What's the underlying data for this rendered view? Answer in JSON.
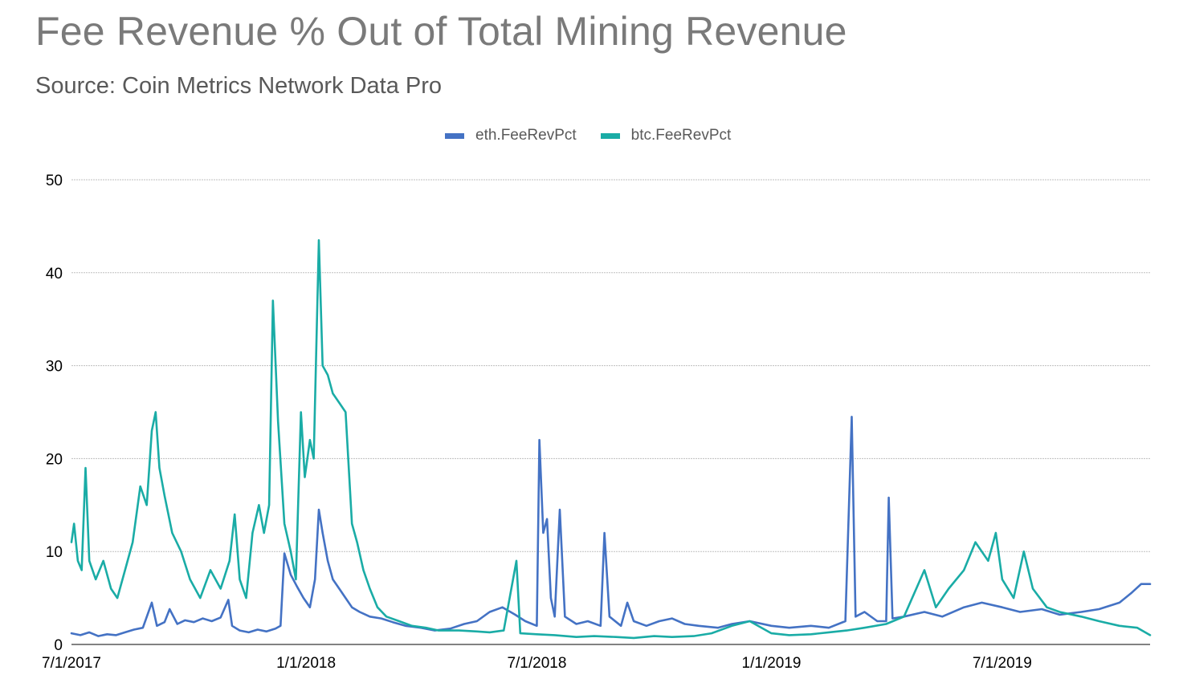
{
  "title": "Fee Revenue % Out of Total Mining Revenue",
  "subtitle": "Source: Coin Metrics Network Data Pro",
  "colors": {
    "eth": "#4472c4",
    "btc": "#1aaca6",
    "grid": "#bfbfbf",
    "axis": "#595959"
  },
  "chart_data": {
    "type": "line",
    "title": "Fee Revenue % Out of Total Mining Revenue",
    "subtitle": "Source: Coin Metrics Network Data Pro",
    "xlabel": "",
    "ylabel": "",
    "ylim": [
      0,
      50
    ],
    "xlim": [
      "2017-07-01",
      "2019-10-25"
    ],
    "yticks": [
      0,
      10,
      20,
      30,
      40,
      50
    ],
    "xticks": [
      {
        "label": "7/1/2017",
        "date": "2017-07-01"
      },
      {
        "label": "1/1/2018",
        "date": "2018-01-01"
      },
      {
        "label": "7/1/2018",
        "date": "2018-07-01"
      },
      {
        "label": "1/1/2019",
        "date": "2019-01-01"
      },
      {
        "label": "7/1/2019",
        "date": "2019-07-01"
      }
    ],
    "grid": true,
    "legend_position": "top-center",
    "series": [
      {
        "name": "eth.FeeRevPct",
        "color": "#4472c4",
        "points": [
          [
            "2017-07-01",
            1.2
          ],
          [
            "2017-07-08",
            1.0
          ],
          [
            "2017-07-15",
            1.3
          ],
          [
            "2017-07-22",
            0.9
          ],
          [
            "2017-07-29",
            1.1
          ],
          [
            "2017-08-05",
            1.0
          ],
          [
            "2017-08-12",
            1.3
          ],
          [
            "2017-08-19",
            1.6
          ],
          [
            "2017-08-26",
            1.8
          ],
          [
            "2017-09-02",
            4.5
          ],
          [
            "2017-09-06",
            2.0
          ],
          [
            "2017-09-12",
            2.4
          ],
          [
            "2017-09-16",
            3.8
          ],
          [
            "2017-09-22",
            2.2
          ],
          [
            "2017-09-28",
            2.6
          ],
          [
            "2017-10-05",
            2.4
          ],
          [
            "2017-10-12",
            2.8
          ],
          [
            "2017-10-19",
            2.5
          ],
          [
            "2017-10-26",
            2.9
          ],
          [
            "2017-11-01",
            4.8
          ],
          [
            "2017-11-04",
            2.0
          ],
          [
            "2017-11-10",
            1.5
          ],
          [
            "2017-11-17",
            1.3
          ],
          [
            "2017-11-24",
            1.6
          ],
          [
            "2017-12-01",
            1.4
          ],
          [
            "2017-12-08",
            1.7
          ],
          [
            "2017-12-12",
            2.0
          ],
          [
            "2017-12-15",
            9.8
          ],
          [
            "2017-12-20",
            7.5
          ],
          [
            "2017-12-25",
            6.2
          ],
          [
            "2017-12-30",
            5.0
          ],
          [
            "2018-01-04",
            4.0
          ],
          [
            "2018-01-08",
            7.0
          ],
          [
            "2018-01-11",
            14.5
          ],
          [
            "2018-01-14",
            12.0
          ],
          [
            "2018-01-18",
            9.0
          ],
          [
            "2018-01-22",
            7.0
          ],
          [
            "2018-01-27",
            6.0
          ],
          [
            "2018-02-01",
            5.0
          ],
          [
            "2018-02-06",
            4.0
          ],
          [
            "2018-02-12",
            3.5
          ],
          [
            "2018-02-20",
            3.0
          ],
          [
            "2018-03-01",
            2.8
          ],
          [
            "2018-03-10",
            2.4
          ],
          [
            "2018-03-20",
            2.0
          ],
          [
            "2018-04-01",
            1.8
          ],
          [
            "2018-04-12",
            1.5
          ],
          [
            "2018-04-24",
            1.7
          ],
          [
            "2018-05-05",
            2.2
          ],
          [
            "2018-05-15",
            2.5
          ],
          [
            "2018-05-25",
            3.5
          ],
          [
            "2018-06-04",
            4.0
          ],
          [
            "2018-06-14",
            3.2
          ],
          [
            "2018-06-22",
            2.5
          ],
          [
            "2018-07-01",
            2.0
          ],
          [
            "2018-07-03",
            22.0
          ],
          [
            "2018-07-06",
            12.0
          ],
          [
            "2018-07-09",
            13.5
          ],
          [
            "2018-07-12",
            5.0
          ],
          [
            "2018-07-15",
            3.0
          ],
          [
            "2018-07-19",
            14.5
          ],
          [
            "2018-07-23",
            3.0
          ],
          [
            "2018-08-01",
            2.2
          ],
          [
            "2018-08-10",
            2.5
          ],
          [
            "2018-08-20",
            2.0
          ],
          [
            "2018-08-23",
            12.0
          ],
          [
            "2018-08-27",
            3.0
          ],
          [
            "2018-09-05",
            2.0
          ],
          [
            "2018-09-10",
            4.5
          ],
          [
            "2018-09-15",
            2.5
          ],
          [
            "2018-09-25",
            2.0
          ],
          [
            "2018-10-05",
            2.5
          ],
          [
            "2018-10-15",
            2.8
          ],
          [
            "2018-10-25",
            2.2
          ],
          [
            "2018-11-05",
            2.0
          ],
          [
            "2018-11-20",
            1.8
          ],
          [
            "2018-12-01",
            2.2
          ],
          [
            "2018-12-15",
            2.5
          ],
          [
            "2019-01-01",
            2.0
          ],
          [
            "2019-01-15",
            1.8
          ],
          [
            "2019-02-01",
            2.0
          ],
          [
            "2019-02-15",
            1.8
          ],
          [
            "2019-02-28",
            2.5
          ],
          [
            "2019-03-05",
            24.5
          ],
          [
            "2019-03-08",
            3.0
          ],
          [
            "2019-03-15",
            3.5
          ],
          [
            "2019-03-25",
            2.5
          ],
          [
            "2019-04-01",
            2.5
          ],
          [
            "2019-04-03",
            15.8
          ],
          [
            "2019-04-06",
            2.8
          ],
          [
            "2019-04-15",
            3.0
          ],
          [
            "2019-05-01",
            3.5
          ],
          [
            "2019-05-15",
            3.0
          ],
          [
            "2019-06-01",
            4.0
          ],
          [
            "2019-06-15",
            4.5
          ],
          [
            "2019-07-01",
            4.0
          ],
          [
            "2019-07-15",
            3.5
          ],
          [
            "2019-08-01",
            3.8
          ],
          [
            "2019-08-15",
            3.2
          ],
          [
            "2019-09-01",
            3.5
          ],
          [
            "2019-09-15",
            3.8
          ],
          [
            "2019-10-01",
            4.5
          ],
          [
            "2019-10-10",
            5.5
          ],
          [
            "2019-10-18",
            6.5
          ],
          [
            "2019-10-25",
            6.5
          ]
        ]
      },
      {
        "name": "btc.FeeRevPct",
        "color": "#1aaca6",
        "points": [
          [
            "2017-07-01",
            11.0
          ],
          [
            "2017-07-03",
            13.0
          ],
          [
            "2017-07-06",
            9.0
          ],
          [
            "2017-07-09",
            8.0
          ],
          [
            "2017-07-12",
            19.0
          ],
          [
            "2017-07-15",
            9.0
          ],
          [
            "2017-07-20",
            7.0
          ],
          [
            "2017-07-26",
            9.0
          ],
          [
            "2017-08-01",
            6.0
          ],
          [
            "2017-08-06",
            5.0
          ],
          [
            "2017-08-12",
            8.0
          ],
          [
            "2017-08-18",
            11.0
          ],
          [
            "2017-08-24",
            17.0
          ],
          [
            "2017-08-29",
            15.0
          ],
          [
            "2017-09-02",
            23.0
          ],
          [
            "2017-09-05",
            25.0
          ],
          [
            "2017-09-08",
            19.0
          ],
          [
            "2017-09-12",
            16.0
          ],
          [
            "2017-09-18",
            12.0
          ],
          [
            "2017-09-25",
            10.0
          ],
          [
            "2017-10-02",
            7.0
          ],
          [
            "2017-10-10",
            5.0
          ],
          [
            "2017-10-18",
            8.0
          ],
          [
            "2017-10-26",
            6.0
          ],
          [
            "2017-11-02",
            9.0
          ],
          [
            "2017-11-06",
            14.0
          ],
          [
            "2017-11-10",
            7.0
          ],
          [
            "2017-11-15",
            5.0
          ],
          [
            "2017-11-20",
            12.0
          ],
          [
            "2017-11-25",
            15.0
          ],
          [
            "2017-11-29",
            12.0
          ],
          [
            "2017-12-03",
            15.0
          ],
          [
            "2017-12-06",
            37.0
          ],
          [
            "2017-12-10",
            24.0
          ],
          [
            "2017-12-15",
            13.0
          ],
          [
            "2017-12-20",
            10.0
          ],
          [
            "2017-12-24",
            7.0
          ],
          [
            "2017-12-28",
            25.0
          ],
          [
            "2017-12-31",
            18.0
          ],
          [
            "2018-01-04",
            22.0
          ],
          [
            "2018-01-07",
            20.0
          ],
          [
            "2018-01-11",
            43.5
          ],
          [
            "2018-01-14",
            30.0
          ],
          [
            "2018-01-18",
            29.0
          ],
          [
            "2018-01-22",
            27.0
          ],
          [
            "2018-01-27",
            26.0
          ],
          [
            "2018-02-01",
            25.0
          ],
          [
            "2018-02-06",
            13.0
          ],
          [
            "2018-02-10",
            11.0
          ],
          [
            "2018-02-15",
            8.0
          ],
          [
            "2018-02-20",
            6.0
          ],
          [
            "2018-02-26",
            4.0
          ],
          [
            "2018-03-05",
            3.0
          ],
          [
            "2018-03-15",
            2.5
          ],
          [
            "2018-03-25",
            2.0
          ],
          [
            "2018-04-05",
            1.8
          ],
          [
            "2018-04-15",
            1.5
          ],
          [
            "2018-05-01",
            1.5
          ],
          [
            "2018-05-15",
            1.4
          ],
          [
            "2018-05-25",
            1.3
          ],
          [
            "2018-06-05",
            1.5
          ],
          [
            "2018-06-15",
            9.0
          ],
          [
            "2018-06-18",
            1.2
          ],
          [
            "2018-07-01",
            1.1
          ],
          [
            "2018-07-15",
            1.0
          ],
          [
            "2018-08-01",
            0.8
          ],
          [
            "2018-08-15",
            0.9
          ],
          [
            "2018-09-01",
            0.8
          ],
          [
            "2018-09-15",
            0.7
          ],
          [
            "2018-10-01",
            0.9
          ],
          [
            "2018-10-15",
            0.8
          ],
          [
            "2018-11-01",
            0.9
          ],
          [
            "2018-11-15",
            1.2
          ],
          [
            "2018-12-01",
            2.0
          ],
          [
            "2018-12-15",
            2.5
          ],
          [
            "2019-01-01",
            1.2
          ],
          [
            "2019-01-15",
            1.0
          ],
          [
            "2019-02-01",
            1.1
          ],
          [
            "2019-02-15",
            1.3
          ],
          [
            "2019-03-01",
            1.5
          ],
          [
            "2019-03-15",
            1.8
          ],
          [
            "2019-04-01",
            2.2
          ],
          [
            "2019-04-15",
            3.0
          ],
          [
            "2019-05-01",
            8.0
          ],
          [
            "2019-05-10",
            4.0
          ],
          [
            "2019-05-20",
            6.0
          ],
          [
            "2019-06-01",
            8.0
          ],
          [
            "2019-06-10",
            11.0
          ],
          [
            "2019-06-20",
            9.0
          ],
          [
            "2019-06-26",
            12.0
          ],
          [
            "2019-07-01",
            7.0
          ],
          [
            "2019-07-10",
            5.0
          ],
          [
            "2019-07-18",
            10.0
          ],
          [
            "2019-07-25",
            6.0
          ],
          [
            "2019-08-05",
            4.0
          ],
          [
            "2019-08-15",
            3.5
          ],
          [
            "2019-09-01",
            3.0
          ],
          [
            "2019-09-15",
            2.5
          ],
          [
            "2019-10-01",
            2.0
          ],
          [
            "2019-10-15",
            1.8
          ],
          [
            "2019-10-25",
            1.0
          ]
        ]
      }
    ]
  }
}
